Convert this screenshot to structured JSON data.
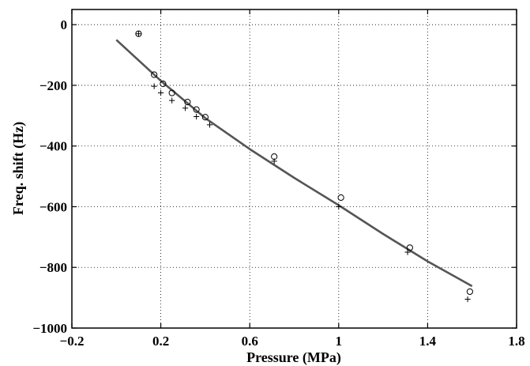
{
  "chart_data": {
    "type": "scatter",
    "title": "",
    "xlabel": "Pressure (MPa)",
    "ylabel": "Freq. shift (Hz)",
    "xlim": [
      -0.2,
      1.8
    ],
    "ylim": [
      -1000,
      50
    ],
    "xticks": [
      -0.2,
      0.2,
      0.6,
      1,
      1.4,
      1.8
    ],
    "xtick_labels": [
      "−0.2",
      "0.2",
      "0.6",
      "1",
      "1.4",
      "1.8"
    ],
    "yticks": [
      0,
      -200,
      -400,
      -600,
      -800,
      -1000
    ],
    "ytick_labels": [
      "0",
      "−200",
      "−400",
      "−600",
      "−800",
      "−1000"
    ],
    "grid": true,
    "series": [
      {
        "marker": "circle",
        "x": [
          0.1,
          0.17,
          0.21,
          0.25,
          0.32,
          0.36,
          0.4,
          0.71,
          1.01,
          1.32,
          1.59
        ],
        "y": [
          -30,
          -165,
          -195,
          -225,
          -255,
          -280,
          -305,
          -435,
          -570,
          -735,
          -880
        ]
      },
      {
        "marker": "plus",
        "x": [
          0.1,
          0.17,
          0.2,
          0.25,
          0.31,
          0.36,
          0.42,
          0.71,
          1.0,
          1.31,
          1.58
        ],
        "y": [
          -30,
          -203,
          -225,
          -250,
          -275,
          -303,
          -330,
          -450,
          -600,
          -750,
          -905
        ]
      },
      {
        "marker": "line",
        "x": [
          0.0,
          0.2,
          0.4,
          0.6,
          0.8,
          1.0,
          1.2,
          1.4,
          1.6
        ],
        "y": [
          -50,
          -185,
          -308,
          -410,
          -505,
          -595,
          -690,
          -780,
          -862
        ]
      }
    ],
    "colors": {
      "markers": "#000000",
      "fit_line": "#555555",
      "grid": "#000000"
    }
  }
}
